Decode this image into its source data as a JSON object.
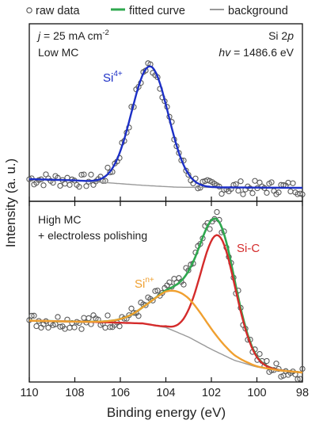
{
  "legend": {
    "raw": "raw data",
    "fit": "fitted curve",
    "bg": "background"
  },
  "top_panel": {
    "j_label": "j",
    "j_value": " = 25 mA cm",
    "j_exp": "-2",
    "sample": "Low MC",
    "core_level": "Si 2",
    "core_level_italic": "p",
    "hv_label": "hv",
    "hv_value": " = 1486.6 eV",
    "peak": "Si",
    "peak_sup": "4+"
  },
  "bottom_panel": {
    "sample_line1": "High MC",
    "sample_line2": "+ electroless polishing",
    "peak_sic": "Si-C",
    "peak_sin": "Si",
    "peak_sin_sup": "n+"
  },
  "colors": {
    "raw": "#555555",
    "fit": "#2fa84f",
    "bg": "#999999",
    "si4": "#1c2fc6",
    "sic": "#d42b2b",
    "sin": "#f0a030"
  },
  "chart_data": {
    "type": "line",
    "xlabel": "Binding energy (eV)",
    "ylabel": "Intensity (a. u.)",
    "xlim": [
      110,
      98
    ],
    "xticks": [
      110,
      108,
      106,
      104,
      102,
      100,
      98
    ],
    "x_reversed": true,
    "yticks": "none",
    "panels": [
      {
        "name": "Low MC",
        "series": [
          {
            "name": "Si4+",
            "component": "si4",
            "shape": "gaussian",
            "center": 104.7,
            "fwhm": 1.9,
            "height": 0.96
          },
          {
            "name": "background",
            "component": "bg",
            "points": [
              [
                110,
                0.07
              ],
              [
                108,
                0.06
              ],
              [
                106.5,
                0.04
              ],
              [
                105,
                0.02
              ],
              [
                103.5,
                0.005
              ],
              [
                98,
                0.0
              ]
            ]
          }
        ]
      },
      {
        "name": "High MC + electroless polishing",
        "series": [
          {
            "name": "Si-C",
            "component": "sic",
            "shape": "gaussian",
            "center": 101.7,
            "fwhm": 1.8,
            "height": 0.86
          },
          {
            "name": "Sin+",
            "component": "sin",
            "shape": "gaussian",
            "center": 103.4,
            "fwhm": 2.8,
            "height": 0.3
          },
          {
            "name": "background",
            "component": "bg",
            "points": [
              [
                110,
                0.38
              ],
              [
                107,
                0.37
              ],
              [
                105,
                0.36
              ],
              [
                104,
                0.33
              ],
              [
                103,
                0.26
              ],
              [
                102,
                0.17
              ],
              [
                101,
                0.09
              ],
              [
                100,
                0.04
              ],
              [
                99,
                0.015
              ],
              [
                98,
                0.0
              ]
            ]
          }
        ]
      }
    ]
  }
}
